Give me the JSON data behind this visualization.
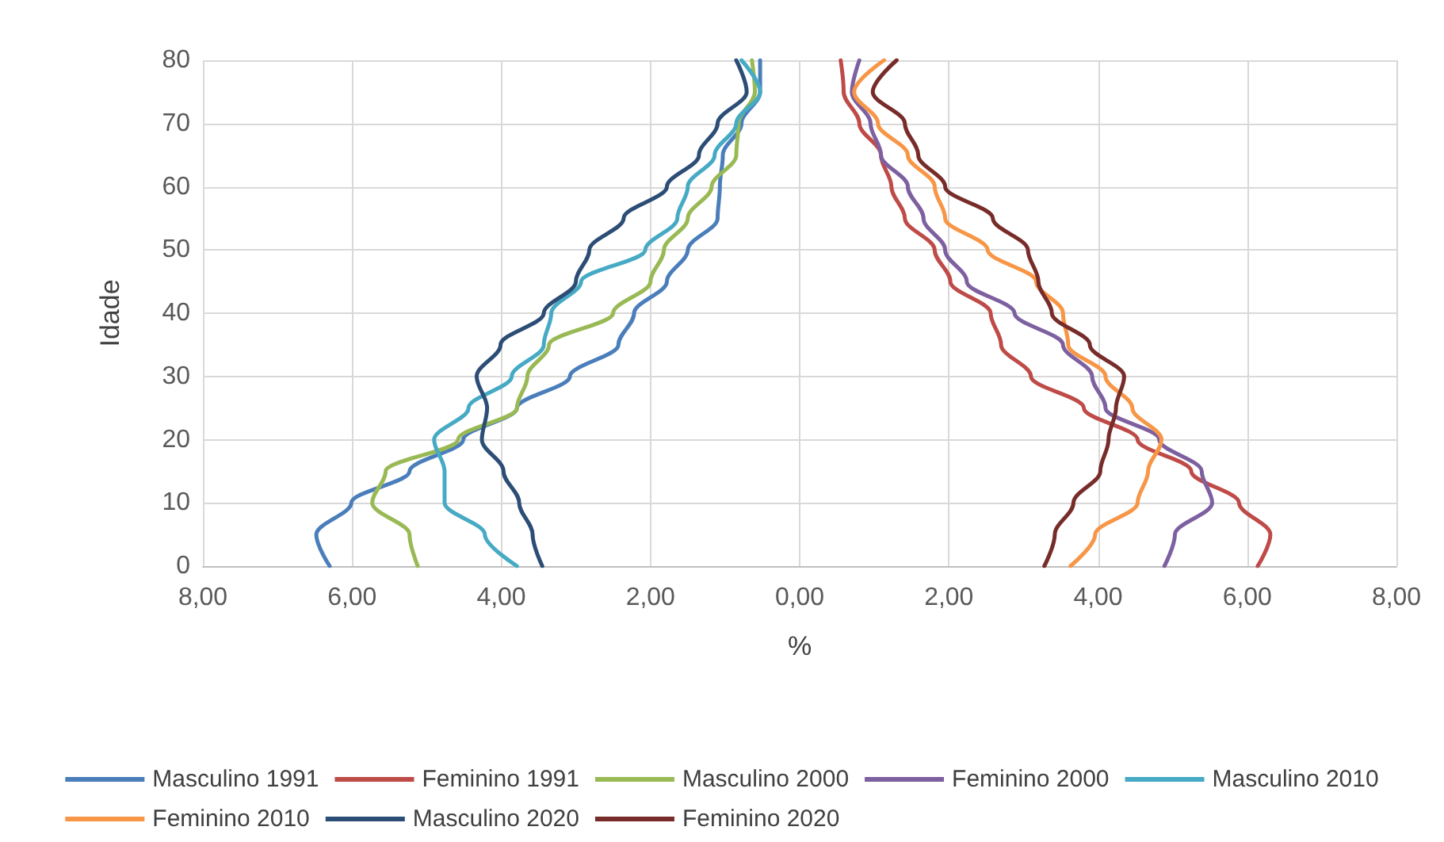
{
  "chart_data": {
    "type": "line",
    "xlabel": "%",
    "ylabel": "Idade",
    "xlim": [
      -8,
      8
    ],
    "xticks": [
      {
        "value": -8,
        "label": "8,00"
      },
      {
        "value": -6,
        "label": "6,00"
      },
      {
        "value": -4,
        "label": "4,00"
      },
      {
        "value": -2,
        "label": "2,00"
      },
      {
        "value": 0,
        "label": "0,00"
      },
      {
        "value": 2,
        "label": "2,00"
      },
      {
        "value": 4,
        "label": "4,00"
      },
      {
        "value": 6,
        "label": "6,00"
      },
      {
        "value": 8,
        "label": "8,00"
      }
    ],
    "ylim": [
      0,
      80
    ],
    "yticks": [
      0,
      10,
      20,
      30,
      40,
      50,
      60,
      70,
      80
    ],
    "grid": true,
    "legend": "bottom",
    "marker": "none",
    "line_style": "solid",
    "series": [
      {
        "name": "Masculino 1991",
        "color": "#4a7ebb",
        "x": [
          -6.3,
          -6.48,
          -6.01,
          -5.23,
          -4.51,
          -3.79,
          -3.08,
          -2.43,
          -2.22,
          -1.78,
          -1.5,
          -1.1,
          -1.07,
          -1.03,
          -0.78,
          -0.53,
          -0.53
        ],
        "values": [
          0,
          5,
          10,
          15,
          20,
          25,
          30,
          35,
          40,
          45,
          50,
          55,
          60,
          65,
          70,
          75,
          80
        ]
      },
      {
        "name": "Feminino 1991",
        "color": "#be4b48",
        "x": [
          6.14,
          6.31,
          5.89,
          5.25,
          4.53,
          3.81,
          3.1,
          2.7,
          2.56,
          2.02,
          1.81,
          1.41,
          1.23,
          1.09,
          0.8,
          0.59,
          0.55
        ],
        "values": [
          0,
          5,
          10,
          15,
          20,
          25,
          30,
          35,
          40,
          45,
          50,
          55,
          60,
          65,
          70,
          75,
          80
        ]
      },
      {
        "name": "Masculino 2000",
        "color": "#98b954",
        "x": [
          -5.12,
          -5.23,
          -5.73,
          -5.55,
          -4.58,
          -3.79,
          -3.65,
          -3.36,
          -2.5,
          -2.0,
          -1.82,
          -1.5,
          -1.18,
          -0.85,
          -0.82,
          -0.6,
          -0.64
        ],
        "values": [
          0,
          5,
          10,
          15,
          20,
          25,
          30,
          35,
          40,
          45,
          50,
          55,
          60,
          65,
          70,
          75,
          80
        ]
      },
      {
        "name": "Feminino 2000",
        "color": "#7d60a0",
        "x": [
          4.89,
          5.03,
          5.53,
          5.39,
          4.82,
          4.1,
          3.92,
          3.53,
          2.88,
          2.24,
          1.95,
          1.66,
          1.45,
          1.09,
          0.95,
          0.7,
          0.8
        ],
        "values": [
          0,
          5,
          10,
          15,
          20,
          25,
          30,
          35,
          40,
          45,
          50,
          55,
          60,
          65,
          70,
          75,
          80
        ]
      },
      {
        "name": "Masculino 2010",
        "color": "#46aac5",
        "x": [
          -3.79,
          -4.22,
          -4.76,
          -4.76,
          -4.9,
          -4.44,
          -3.86,
          -3.43,
          -3.33,
          -2.93,
          -2.07,
          -1.64,
          -1.5,
          -1.14,
          -0.85,
          -0.53,
          -0.78
        ],
        "values": [
          0,
          5,
          10,
          15,
          20,
          25,
          30,
          35,
          40,
          45,
          50,
          55,
          60,
          65,
          70,
          75,
          80
        ]
      },
      {
        "name": "Feminino 2010",
        "color": "#f79646",
        "x": [
          3.63,
          3.96,
          4.53,
          4.67,
          4.85,
          4.46,
          4.1,
          3.6,
          3.53,
          3.17,
          2.52,
          1.95,
          1.81,
          1.45,
          1.05,
          0.73,
          1.13
        ],
        "values": [
          0,
          5,
          10,
          15,
          20,
          25,
          30,
          35,
          40,
          45,
          50,
          55,
          60,
          65,
          70,
          75,
          80
        ]
      },
      {
        "name": "Masculino 2020",
        "color": "#2c4d75",
        "x": [
          -3.45,
          -3.58,
          -3.76,
          -3.97,
          -4.26,
          -4.19,
          -4.33,
          -4.01,
          -3.43,
          -3.0,
          -2.82,
          -2.36,
          -1.78,
          -1.35,
          -1.1,
          -0.71,
          -0.85
        ],
        "values": [
          0,
          5,
          10,
          15,
          20,
          25,
          30,
          35,
          40,
          45,
          50,
          55,
          60,
          65,
          70,
          75,
          80
        ]
      },
      {
        "name": "Feminino 2020",
        "color": "#772c2a",
        "x": [
          3.28,
          3.42,
          3.67,
          4.03,
          4.14,
          4.24,
          4.35,
          3.89,
          3.38,
          3.2,
          3.06,
          2.59,
          1.95,
          1.59,
          1.41,
          0.98,
          1.3
        ],
        "values": [
          0,
          5,
          10,
          15,
          20,
          25,
          30,
          35,
          40,
          45,
          50,
          55,
          60,
          65,
          70,
          75,
          80
        ]
      }
    ]
  }
}
